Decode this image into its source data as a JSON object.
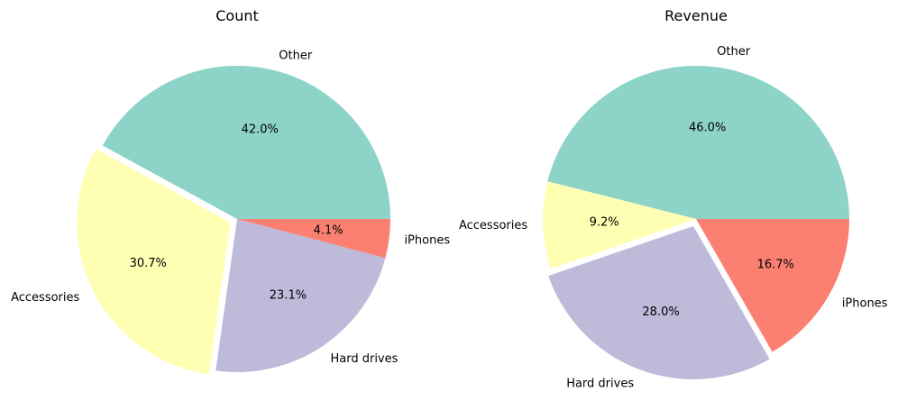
{
  "chart_data": [
    {
      "type": "pie",
      "title": "Count",
      "categories": [
        "Other",
        "Accessories",
        "Hard drives",
        "iPhones"
      ],
      "values": [
        42.0,
        30.7,
        23.1,
        4.1
      ],
      "value_labels": [
        "42.0%",
        "30.7%",
        "23.1%",
        "4.1%"
      ],
      "exploded": [
        false,
        true,
        false,
        false
      ],
      "start_angle_deg": 0,
      "direction": "counterclockwise",
      "colors": [
        "#8dd3c7",
        "#ffffb3",
        "#bebada",
        "#fb8072"
      ]
    },
    {
      "type": "pie",
      "title": "Revenue",
      "categories": [
        "Other",
        "Accessories",
        "Hard drives",
        "iPhones"
      ],
      "values": [
        46.0,
        9.2,
        28.0,
        16.7
      ],
      "value_labels": [
        "46.0%",
        "9.2%",
        "28.0%",
        "16.7%"
      ],
      "exploded": [
        false,
        false,
        true,
        false
      ],
      "start_angle_deg": 0,
      "direction": "counterclockwise",
      "colors": [
        "#8dd3c7",
        "#ffffb3",
        "#bebada",
        "#fb8072"
      ]
    }
  ]
}
